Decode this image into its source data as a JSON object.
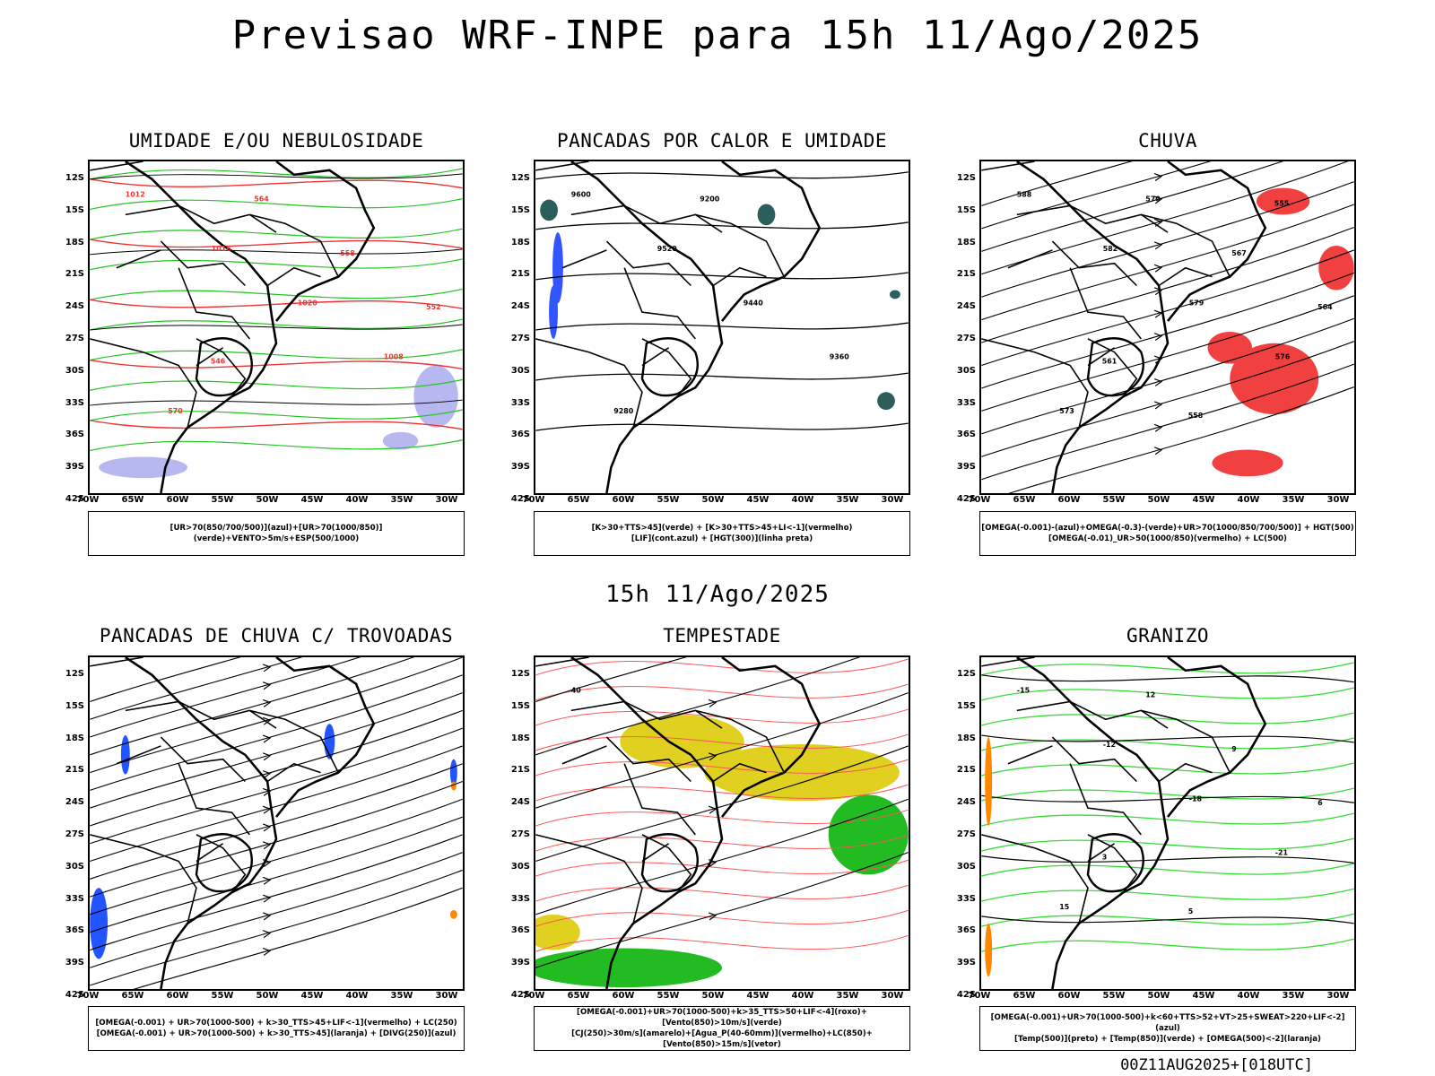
{
  "main_title": "Previsao WRF-INPE  para 15h 11/Ago/2025",
  "mid_title": "15h 11/Ago/2025",
  "footer": "00Z11AUG2025+[018UTC]",
  "lat_labels": [
    "12S",
    "15S",
    "18S",
    "21S",
    "24S",
    "27S",
    "30S",
    "33S",
    "36S",
    "39S",
    "42S"
  ],
  "lon_labels": [
    "70W",
    "65W",
    "60W",
    "55W",
    "50W",
    "45W",
    "40W",
    "35W",
    "30W"
  ],
  "panels": [
    {
      "title": "UMIDADE E/OU NEBULOSIDADE",
      "legend": [
        "[UR>70(850/700/500)](azul)+[UR>70(1000/850)](verde)+VENTO>5m/s+ESP(500/1000)"
      ],
      "contour_labels": [
        "1012",
        "1016",
        "1020",
        "1008",
        "570",
        "564",
        "558",
        "552",
        "546"
      ]
    },
    {
      "title": "PANCADAS POR CALOR E UMIDADE",
      "legend": [
        "[K>30+TTS>45](verde) + [K>30+TTS>45+LI<-1](vermelho)",
        "[LIF](cont.azul) + [HGT(300)](linha preta)"
      ],
      "contour_labels": [
        "9600",
        "9520",
        "9440",
        "9360",
        "9280",
        "9200"
      ]
    },
    {
      "title": "CHUVA",
      "legend": [
        "[OMEGA(-0.001)-(azul)+OMEGA(-0.3)-(verde)+UR>70(1000/850/700/500)] + HGT(500)",
        "[OMEGA(-0.01)_UR>50(1000/850)(vermelho) + LC(500)"
      ],
      "contour_labels": [
        "588",
        "582",
        "579",
        "576",
        "573",
        "570",
        "567",
        "564",
        "561",
        "558",
        "555"
      ]
    },
    {
      "title": "PANCADAS DE CHUVA C/ TROVOADAS",
      "legend": [
        "[OMEGA(-0.001) + UR>70(1000-500) + k>30_TTS>45+LIF<-1](vermelho) + LC(250)",
        "[OMEGA(-0.001) + UR>70(1000-500) + k>30_TTS>45](laranja) + [DIVG(250)](azul)"
      ],
      "contour_labels": []
    },
    {
      "title": "TEMPESTADE",
      "legend": [
        "[OMEGA(-0.001)+UR>70(1000-500)+k>35_TTS>50+LIF<-4](roxo)+[Vento(850)>10m/s](verde)",
        "[CJ(250)>30m/s](amarelo)+[Agua_P(40-60mm)](vermelho)+LC(850)+[Vento(850)>15m/s](vetor)"
      ],
      "contour_labels": [
        "40"
      ]
    },
    {
      "title": "GRANIZO",
      "legend": [
        "[OMEGA(-0.001)+UR>70(1000-500)+k<60+TTS>52+VT>25+SWEAT>220+LIF<-2](azul)",
        "[Temp(500)](preto) + [Temp(850)](verde) + [OMEGA(500)<-2](laranja)"
      ],
      "contour_labels": [
        "-15",
        "-12",
        "-18",
        "-21",
        "15",
        "12",
        "9",
        "6",
        "3",
        "5"
      ]
    }
  ]
}
